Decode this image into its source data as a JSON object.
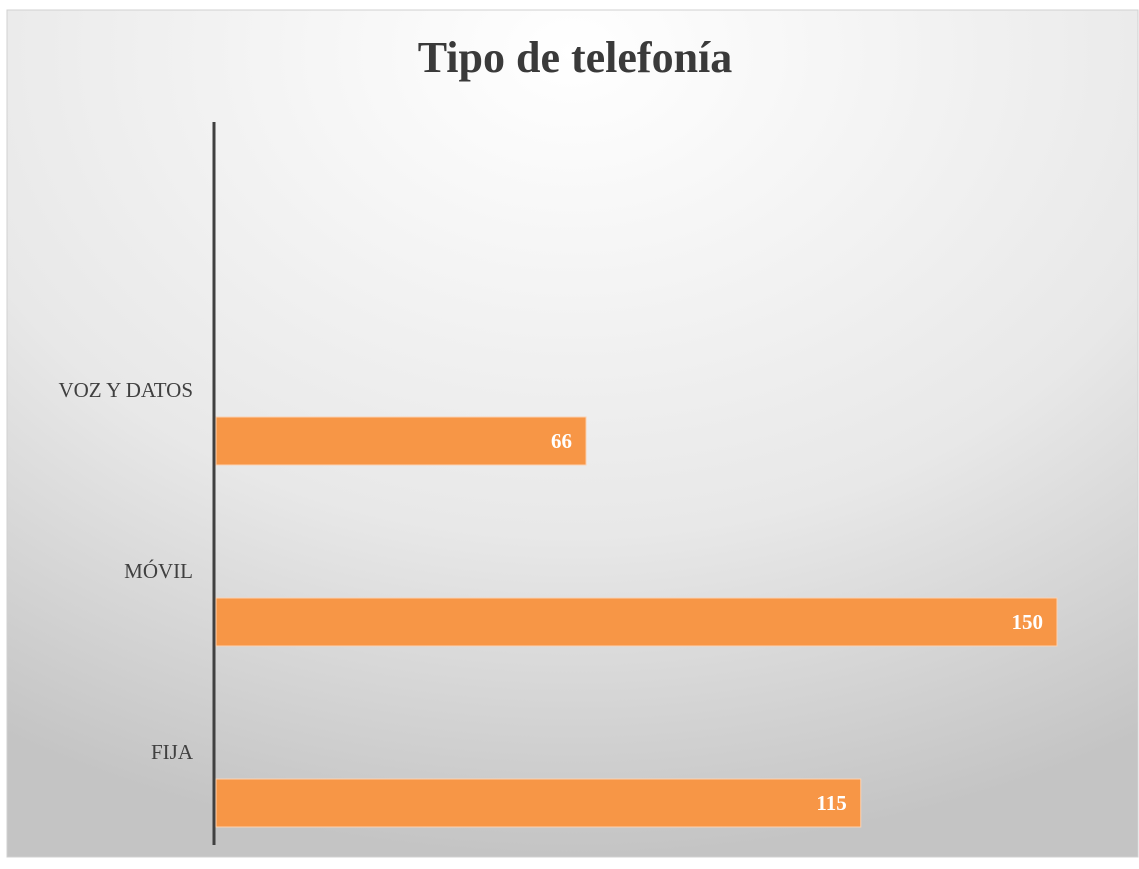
{
  "chart_data": {
    "type": "bar",
    "orientation": "horizontal",
    "title": "Tipo de telefonía",
    "categories": [
      "VOZ Y DATOS",
      "MÓVIL",
      "FIJA"
    ],
    "values": [
      66,
      150,
      115
    ],
    "color": "#f79646"
  }
}
